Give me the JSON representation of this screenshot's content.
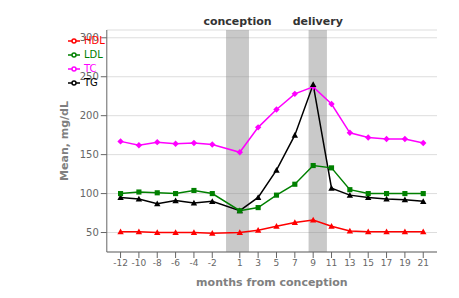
{
  "chart_data": {
    "type": "line",
    "xlabel": "months from conception",
    "ylabel": "Mean, mg/dL",
    "x": [
      -12,
      -10,
      -8,
      -6,
      -4,
      -2,
      1,
      3,
      5,
      7,
      9,
      11,
      13,
      15,
      17,
      19,
      21
    ],
    "series": [
      {
        "name": "TC",
        "color": "#ff00ff",
        "marker": "diamond",
        "values": [
          167,
          162,
          166,
          164,
          165,
          163,
          153,
          185,
          208,
          228,
          237,
          215,
          178,
          172,
          170,
          170,
          165
        ]
      },
      {
        "name": "TG",
        "color": "#000000",
        "marker": "triangle",
        "values": [
          95,
          93,
          87,
          91,
          88,
          90,
          78,
          95,
          130,
          175,
          240,
          107,
          98,
          95,
          93,
          92,
          90
        ]
      },
      {
        "name": "LDL",
        "color": "#008000",
        "marker": "square",
        "values": [
          100,
          102,
          101,
          100,
          104,
          100,
          78,
          82,
          98,
          112,
          136,
          133,
          105,
          100,
          100,
          100,
          100
        ]
      },
      {
        "name": "HDL",
        "color": "#ff0000",
        "marker": "triangle",
        "values": [
          51,
          51,
          50,
          50,
          50,
          49,
          50,
          53,
          58,
          63,
          66,
          58,
          52,
          51,
          51,
          51,
          51
        ]
      }
    ],
    "xlim": [
      -13.5,
      22.5
    ],
    "xticks": [
      -12,
      -10,
      -8,
      -6,
      -4,
      -2,
      1,
      3,
      5,
      7,
      9,
      11,
      13,
      15,
      17,
      19,
      21
    ],
    "ylim": [
      25,
      310
    ],
    "yticks": [
      50,
      100,
      150,
      200,
      250,
      300
    ],
    "bands": [
      {
        "from": -0.5,
        "to": 2.0,
        "label": "conception",
        "color": "#888888"
      },
      {
        "from": 8.5,
        "to": 10.5,
        "label": "delivery",
        "color": "#888888"
      }
    ],
    "grid": true,
    "legend": "upper left"
  }
}
